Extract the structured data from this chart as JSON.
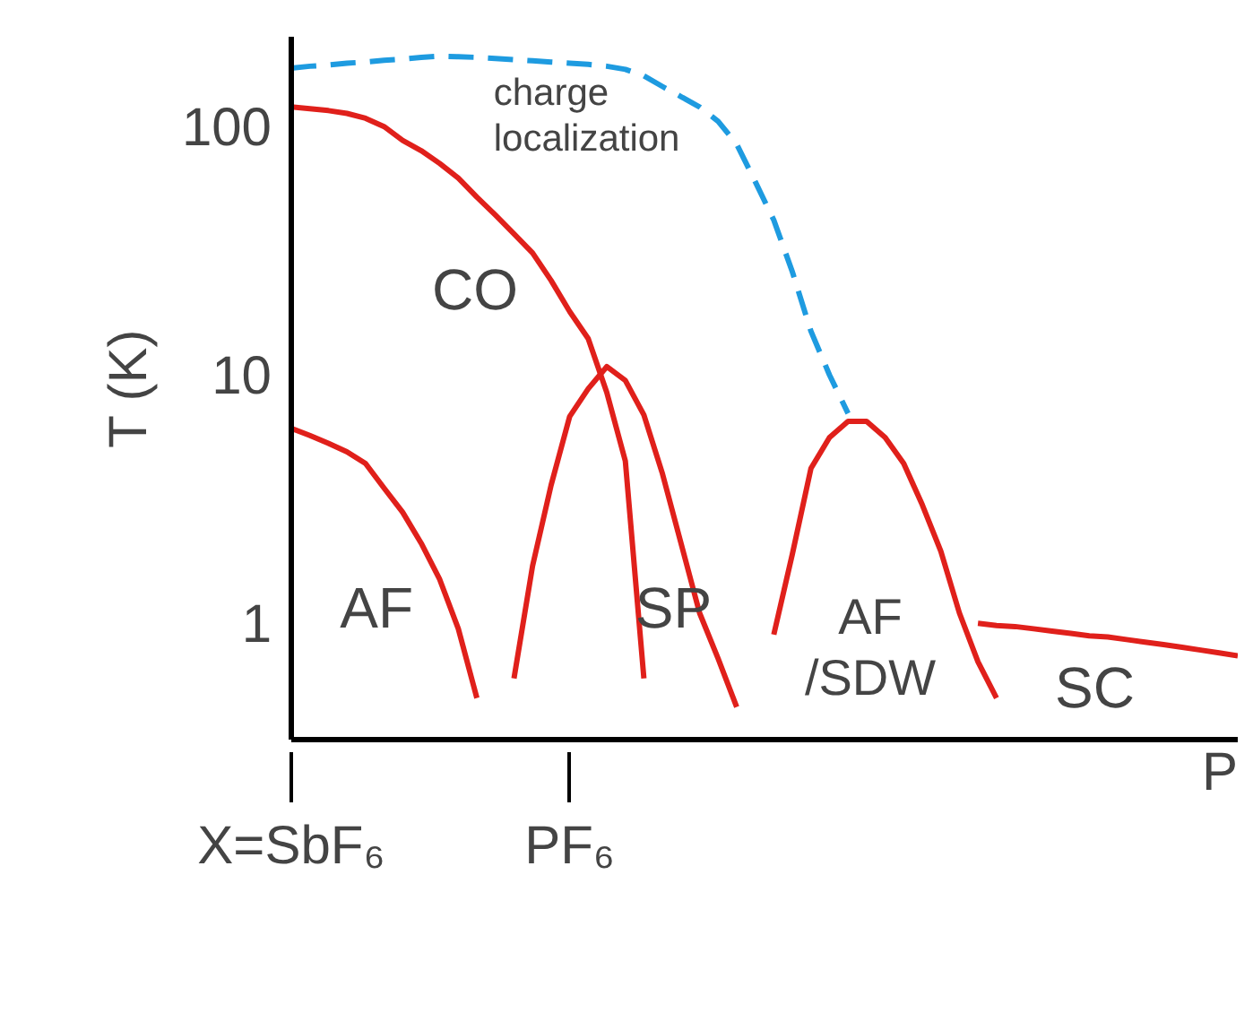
{
  "chart_data": {
    "type": "line",
    "xlabel": "P",
    "ylabel": "T (K)",
    "log": "y",
    "ylim": [
      0.34,
      230
    ],
    "yticks": [
      1,
      10,
      100
    ],
    "marker": "none",
    "line_style": "solid",
    "categories": [
      "X=SbF₆",
      null,
      null,
      null,
      null,
      null,
      null,
      null,
      null,
      null,
      null,
      null,
      null,
      null,
      null,
      "PF₆",
      null,
      null,
      null,
      null,
      null,
      null,
      null,
      null,
      null,
      null,
      null,
      null,
      null,
      null,
      null,
      null,
      null,
      null,
      null,
      null,
      null,
      null,
      null,
      null,
      null,
      null,
      null,
      null,
      null,
      null,
      null,
      null,
      null,
      null,
      null,
      null
    ],
    "series": [
      {
        "color": "#e0201b",
        "values": [
          120,
          118,
          116,
          113,
          108,
          100,
          88,
          80,
          71,
          62,
          52,
          44,
          37,
          31,
          24,
          18,
          14,
          8.5,
          4.5,
          0.6,
          null,
          null,
          null,
          null,
          null,
          null,
          null,
          null,
          null,
          null,
          null,
          null,
          null,
          null,
          null,
          null,
          null,
          null,
          null,
          null,
          null,
          null,
          null,
          null,
          null,
          null,
          null,
          null,
          null,
          null,
          null,
          null
        ]
      },
      {
        "color": "#e0201b",
        "values": [
          6.1,
          5.7,
          5.3,
          4.9,
          4.4,
          3.5,
          2.8,
          2.1,
          1.5,
          0.95,
          0.5,
          null,
          null,
          null,
          null,
          null,
          null,
          null,
          null,
          null,
          null,
          null,
          null,
          null,
          null,
          null,
          null,
          null,
          null,
          null,
          null,
          null,
          null,
          null,
          null,
          null,
          null,
          null,
          null,
          null,
          null,
          null,
          null,
          null,
          null,
          null,
          null,
          null,
          null,
          null,
          null,
          null
        ]
      },
      {
        "color": "#e0201b",
        "values": [
          null,
          null,
          null,
          null,
          null,
          null,
          null,
          null,
          null,
          null,
          null,
          null,
          0.6,
          1.7,
          3.6,
          6.8,
          8.8,
          10.8,
          9.5,
          6.9,
          4,
          2.1,
          1.1,
          0.72,
          0.46,
          null,
          null,
          null,
          null,
          null,
          null,
          null,
          null,
          null,
          null,
          null,
          null,
          null,
          null,
          null,
          null,
          null,
          null,
          null,
          null,
          null,
          null,
          null,
          null,
          null,
          null,
          null
        ]
      },
      {
        "color": "#e0201b",
        "values": [
          null,
          null,
          null,
          null,
          null,
          null,
          null,
          null,
          null,
          null,
          null,
          null,
          null,
          null,
          null,
          null,
          null,
          null,
          null,
          null,
          null,
          null,
          null,
          null,
          null,
          null,
          0.9,
          1.9,
          4.2,
          5.6,
          6.5,
          6.5,
          5.6,
          4.4,
          3,
          1.95,
          1.1,
          0.7,
          0.5,
          null,
          null,
          null,
          null,
          null,
          null,
          null,
          null,
          null,
          null,
          null,
          null,
          null
        ]
      },
      {
        "color": "#e0201b",
        "values": [
          null,
          null,
          null,
          null,
          null,
          null,
          null,
          null,
          null,
          null,
          null,
          null,
          null,
          null,
          null,
          null,
          null,
          null,
          null,
          null,
          null,
          null,
          null,
          null,
          null,
          null,
          null,
          null,
          null,
          null,
          null,
          null,
          null,
          null,
          null,
          null,
          null,
          1.0,
          0.98,
          0.97,
          0.95,
          0.93,
          0.91,
          0.89,
          0.88,
          0.86,
          0.84,
          0.82,
          0.8,
          0.78,
          0.76,
          0.74
        ]
      },
      {
        "color": "#1e9be0",
        "line_style": "dashed",
        "values": [
          172,
          175,
          177,
          180,
          182,
          185,
          187,
          190,
          192,
          191,
          190,
          188,
          186,
          184,
          182,
          180,
          178,
          175,
          170,
          160,
          145,
          132,
          120,
          105,
          85,
          60,
          42,
          26,
          15,
          10,
          7,
          null,
          null,
          null,
          null,
          null,
          null,
          null,
          null,
          null,
          null,
          null,
          null,
          null,
          null,
          null,
          null,
          null,
          null,
          null,
          null,
          null
        ]
      }
    ],
    "annotations": [
      "CO",
      "AF",
      "SP",
      "AF\n/SDW",
      "SC",
      "charge\nlocalization"
    ]
  }
}
